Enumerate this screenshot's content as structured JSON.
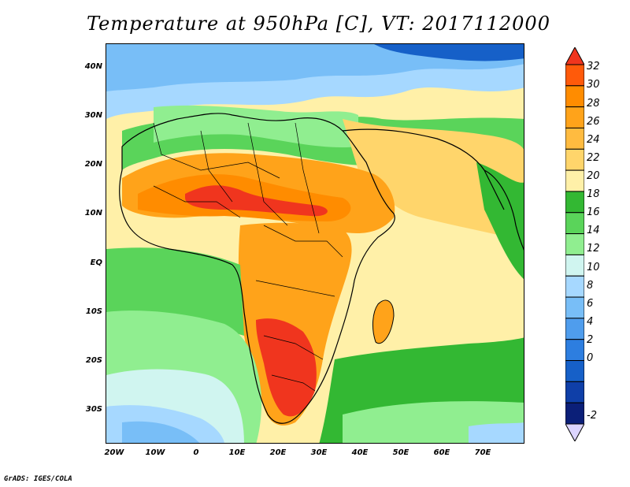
{
  "title": "Temperature at 950hPa [C], VT: 2017112000",
  "credit": "GrADS: IGES/COLA",
  "axes": {
    "lat_labels": [
      "40N",
      "30N",
      "20N",
      "10N",
      "EQ",
      "10S",
      "20S",
      "30S"
    ],
    "lon_labels": [
      "20W",
      "10W",
      "0",
      "10E",
      "20E",
      "30E",
      "40E",
      "50E",
      "60E",
      "70E"
    ]
  },
  "colorbar": {
    "labels": [
      "32",
      "30",
      "28",
      "26",
      "24",
      "22",
      "20",
      "18",
      "16",
      "14",
      "12",
      "10",
      "8",
      "6",
      "4",
      "2",
      "0",
      "-2"
    ],
    "colors": [
      "#f0351e",
      "#ff5a0a",
      "#ff8c00",
      "#ffa31a",
      "#ffbb40",
      "#ffd56b",
      "#fff0a8",
      "#33b833",
      "#5ad45a",
      "#90ee90",
      "#d0f5f0",
      "#a6d8ff",
      "#78bef7",
      "#4f9ded",
      "#2d7ee0",
      "#1660c8",
      "#0f3fa8",
      "#0b1f78",
      "#dcd5ff"
    ]
  },
  "map": {
    "lat_range": [
      -37,
      45
    ],
    "lon_range": [
      -22,
      80
    ],
    "variable": "Temperature at 950hPa",
    "units": "C"
  }
}
